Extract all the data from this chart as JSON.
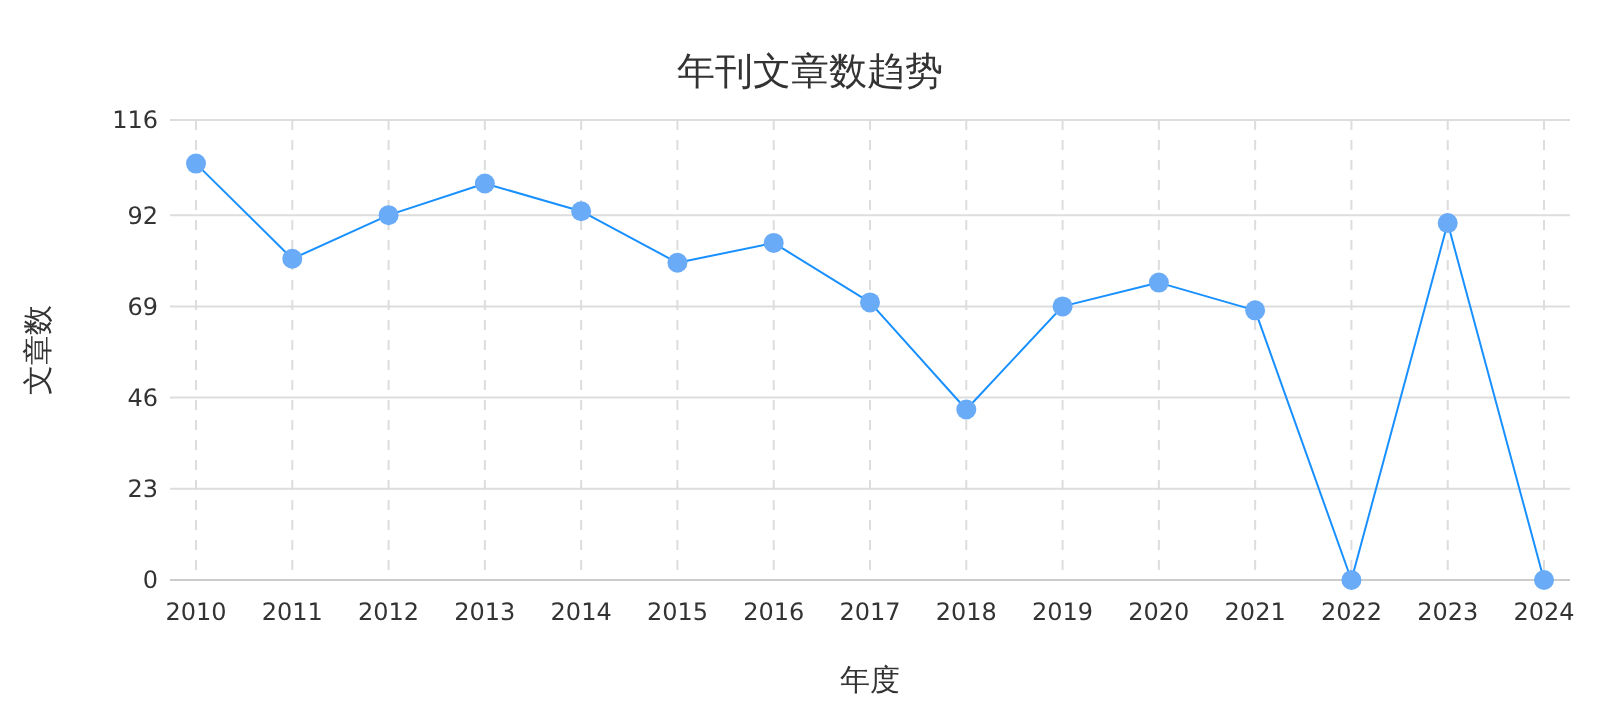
{
  "chart_data": {
    "type": "line",
    "title": "年刊文章数趋势",
    "xlabel": "年度",
    "ylabel": "文章数",
    "categories": [
      "2010",
      "2011",
      "2012",
      "2013",
      "2014",
      "2015",
      "2016",
      "2017",
      "2018",
      "2019",
      "2020",
      "2021",
      "2022",
      "2023",
      "2024"
    ],
    "series": [
      {
        "color": "#1890ff",
        "values": [
          105,
          81,
          92,
          100,
          93,
          80,
          85,
          70,
          43,
          69,
          75,
          68,
          0,
          90,
          0
        ]
      }
    ],
    "ylim": [
      0,
      116
    ],
    "yticks": [
      0,
      23,
      46,
      69,
      92,
      116
    ],
    "grid": true,
    "marker": "circle",
    "line_style": "solid"
  }
}
